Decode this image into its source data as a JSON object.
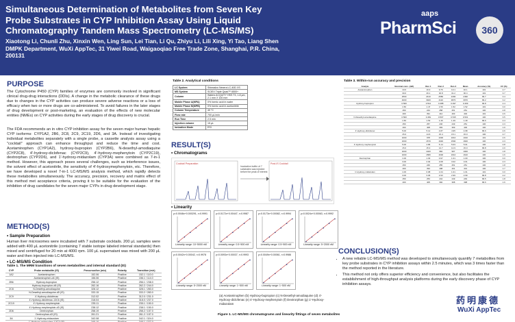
{
  "header": {
    "title": "Simultaneous Determination of Metabolites from Seven Key Probe Substrates in CYP Inhibition Assay Using Liquid Chromatography Tandem Mass Spectrometry (LC-MS/MS)",
    "authors": "Xiaotong Li, Chunli Zhu, Xinxin Wen, Ling Sun, Lei Tian, Li Qu, Zhiyu Li, Lili Xing, Yi Tao, Liang Shen",
    "affiliation": "DMPK Department, WuXi AppTec, 31 Yiwei Road, Waigaoqiao Free Trade Zone, Shanghai, P.R. China, 200131",
    "logo_small": "aaps",
    "logo_main": "PharmSci",
    "logo_number": "360"
  },
  "purpose": {
    "heading": "PURPOSE",
    "p1": "The Cytochrome P450 (CYP) families of enzymes are commonly involved in significant clinical drug-drug interactions (DDIs). A change in the metabolic clearance of these drugs due to changes in the CYP activities can produce severe adverse reactions or a loss of efficacy when two or more drugs are co-administered. To avoid failures in the later stages of drug development or post-marketing, an evaluation of the effects of new molecular entities (NMEs) on CYP activities during the early stages of drug discovery is crucial.",
    "p2": "The FDA recommends an in vitro CYP inhibition assay for the seven major human hepatic CYP isoforms: CYP1A2, 2B6, 2C8, 2C9, 2C19, 2D6, and 3A. Instead of investigating individual metabolites separately with a single probe, a cassette analysis assay using a \"cocktail\" approach can enhance throughput and reduce the time and cost. Acetaminophen (CYP1A2), hydroxy-bupropion (CYP2B6), N-desethyl-amodiaquine (CYP2C8), 4'-hydroxy-diclofenac (CYP2C9), 4'-hydroxy-mephenytoin (CYP2C19), dextrorphan (CYP2D6), and 1'-hydroxy-midazolam (CYP3A) were combined as 7-in-1 method. However, this approach poses several challenges, such as interference issues, the solvent effect of acetonitrile, the sensitivity of 4'-hydroxymephenytoin, etc. Therefore, we have developed a novel 7-in-1 LC-MS/MS analysis method, which rapidly detects these metabolites simultaneously. The accuracy, precision, recovery and matrix effect of this method met acceptance criteria, proving it to be suitable for the evaluation of the inhibition of drug candidates for the seven major CYPs in drug development stage."
  },
  "methods": {
    "heading": "METHOD(S)",
    "sample_prep_title": "• Sample Preparation",
    "sample_prep_text": "Human liver microsomes were incubated with 7 substrate cocktails. 200 μL samples were added with 400 μL acetonitrile (containing 7 stable isotope labeled internal standards) then mixed and centrifuged for 20 min at 4000 rpm. 100 μL supernatant was mixed with 200 μL water and then injected into LC-MS/MS.",
    "lcms_title": "• LC-MS/MS Condition",
    "table1_title": "Table 1.  The MRM transitions of seven metabolites and internal standard (IS)",
    "table1_headers": [
      "CYP",
      "Probe metabolite (IS)",
      "Precursor/Ion (m/z)",
      "Polarity",
      "Transition (m/z)"
    ],
    "table1_rows": [
      [
        "1A2",
        "Acetaminophen",
        "152.06",
        "Positive",
        "152.1 / 110.0"
      ],
      [
        "",
        "Acetaminophen-d4 (IS)",
        "156.06",
        "Positive",
        "156.1 / 114.0"
      ],
      [
        "2B6",
        "Hydroxy-bupropion",
        "256.12",
        "Positive",
        "256.1 / 238.0"
      ],
      [
        "",
        "Hydroxy-bupropion-d6 (IS)",
        "262.16",
        "Positive",
        "262.2 / 244.0"
      ],
      [
        "2C8",
        "N-Desethyl-amodiaquine",
        "328.12",
        "Positive",
        "328.1 / 283.0"
      ],
      [
        "",
        "N-Desethyl-amodiaquine-d5 (IS)",
        "333.15",
        "Positive",
        "333.2 / 283.0"
      ],
      [
        "2C9",
        "4'-Hydroxy-diclofenac",
        "312.02",
        "Positive",
        "312.0 / 231.0"
      ],
      [
        "",
        "4'-Hydroxy-diclofenac-13C6 (IS)",
        "318.04",
        "Positive",
        "318.0 / 237.0"
      ],
      [
        "2C19",
        "4'-Hydroxy-mephenytoin",
        "235.11",
        "Positive",
        "235.1 / 150.0"
      ],
      [
        "",
        "4'-Hydroxy-mephenytoin-d3 (IS)",
        "238.12",
        "Positive",
        "238.1 / 150.0"
      ],
      [
        "2D6",
        "Dextrorphan",
        "258.19",
        "Positive",
        "258.2 / 157.0"
      ],
      [
        "",
        "Dextrorphan-d3 (IS)",
        "261.21",
        "Positive",
        "261.2 / 157.0"
      ],
      [
        "3A",
        "1'-Hydroxy-midazolam",
        "342.08",
        "Positive",
        "342.1 / 324.0"
      ],
      [
        "",
        "1'-Hydroxy-midazolam-13C3 (IS)",
        "345.10",
        "Positive",
        "345.1 / 327.0"
      ]
    ]
  },
  "table2": {
    "title": "Table 2.  Analytical conditions",
    "rows": [
      [
        "LC System",
        "Shimadzu Nexera LC-40D XS"
      ],
      [
        "MS System",
        "SCIEX Triple Quad™ 6500+"
      ],
      [
        "Column",
        "Waters ACQUITY HSS T3, 1.8 μm, 2.1 mm X 100 mm"
      ],
      [
        "Mobile Phase A(MPA)",
        "0% formic acid in water"
      ],
      [
        "Mobile Phase B(MPB)",
        "0% formic acid in acetonitrile"
      ],
      [
        "Column Temperature",
        "40 °C"
      ],
      [
        "Flow rate",
        "700 μL/min"
      ],
      [
        "Run Time",
        "2.5 min"
      ],
      [
        "Injection volume",
        "15 μL"
      ],
      [
        "Ionization Mode",
        "ESI"
      ]
    ]
  },
  "results": {
    "heading": "RESULT(S)",
    "chromatograms_title": "• Chromatograms",
    "chrom_left_title": "Cocktail Preparation",
    "chrom_right_title": "Post-IS Cocktail",
    "chrom_note": "Incubation buffer of 7 substrates was injected before the peak of interest",
    "linearity_title": "• Linearity",
    "linearity_panels": [
      {
        "eq": "y=0.0046x+0.000291, r=0.9991",
        "range": "Linearity range: 10~5000 nM"
      },
      {
        "eq": "y=0.0172x+0.00447, r=0.9987",
        "range": "Linearity range: 0.5~500 nM"
      },
      {
        "eq": "y=0.0173x+0.00082, r=0.9994",
        "range": "Linearity range: 0.5~500 nM"
      },
      {
        "eq": "y=0.0024x+0.00063, r=0.9992",
        "range": "Linearity range: 5~2000 nM"
      },
      {
        "eq": "y=0.0042x+0.00042, r=0.9978",
        "range": "Linearity range: 5~2000 nM"
      },
      {
        "eq": "y=0.0093x+0.00037, r=0.9993",
        "range": "Linearity range: 1~500 nM"
      },
      {
        "eq": "y=0.0049x+0.00061, r=0.9986",
        "range": "Linearity range: 1~500 nM"
      }
    ],
    "legend": "(a) Acetaminophen   (b) Hydroxy-bupropion   (c) N-Desethyl-amodiaquine   (d) 4'-Hydroxy-diclofenac   (e) 4'-Hydroxy-mephenytoin   (f) Dextrorphan   (g) 1'-Hydroxy-midazolam",
    "figure_caption": "Figure 1.  LC-MS/MS chromatograms and linearity fittings of seven metabolites"
  },
  "table3": {
    "title": "Table 3.  Within-run accuracy and precision",
    "headers": [
      "Analyte",
      "Nominal conc. (nM)",
      "Run 1",
      "Run 2",
      "Run 3",
      "Mean",
      "Accuracy (%)",
      "CV (%)"
    ],
    "rows": [
      [
        "Acetaminophen",
        "10.0",
        "10.3",
        "9.76",
        "10.1",
        "10.1",
        "101",
        "2.7"
      ],
      [
        "",
        "30.0",
        "29.1",
        "30.8",
        "31.2",
        "30.4",
        "101",
        "3.7"
      ],
      [
        "",
        "2500",
        "2410",
        "2580",
        "2490",
        "2490",
        "99.7",
        "3.4"
      ],
      [
        "",
        "4000",
        "3920",
        "4110",
        "3870",
        "3970",
        "99.2",
        "3.2"
      ],
      [
        "Hydroxy-bupropion",
        "0.500",
        "0.512",
        "0.488",
        "0.497",
        "0.499",
        "99.8",
        "2.4"
      ],
      [
        "",
        "1.50",
        "1.47",
        "1.56",
        "1.52",
        "1.52",
        "101",
        "3.0"
      ],
      [
        "",
        "250",
        "244",
        "258",
        "251",
        "251",
        "100",
        "2.8"
      ],
      [
        "",
        "400",
        "391",
        "412",
        "403",
        "402",
        "101",
        "2.6"
      ],
      [
        "N-Desethyl-amodiaquine",
        "0.500",
        "0.481",
        "0.507",
        "0.515",
        "0.501",
        "100",
        "3.5"
      ],
      [
        "",
        "1.50",
        "1.53",
        "1.46",
        "1.49",
        "1.49",
        "99.6",
        "2.4"
      ],
      [
        "",
        "250",
        "257",
        "246",
        "249",
        "251",
        "100",
        "2.3"
      ],
      [
        "",
        "400",
        "408",
        "393",
        "399",
        "400",
        "100",
        "1.9"
      ],
      [
        "4'-Hydroxy-diclofenac",
        "5.00",
        "5.12",
        "4.87",
        "4.95",
        "4.98",
        "99.6",
        "2.6"
      ],
      [
        "",
        "15.0",
        "14.6",
        "15.4",
        "15.1",
        "15.0",
        "100",
        "2.7"
      ],
      [
        "",
        "1000",
        "978",
        "1030",
        "1010",
        "1010",
        "101",
        "2.6"
      ],
      [
        "",
        "1600",
        "1570",
        "1640",
        "1590",
        "1600",
        "100",
        "2.3"
      ],
      [
        "4'-Hydroxy-mephenytoin",
        "5.00",
        "4.86",
        "5.14",
        "5.03",
        "5.01",
        "100",
        "2.8"
      ],
      [
        "",
        "15.0",
        "15.3",
        "14.7",
        "14.9",
        "15.0",
        "99.8",
        "2.0"
      ],
      [
        "",
        "1000",
        "1020",
        "984",
        "997",
        "1000",
        "100",
        "1.8"
      ],
      [
        "",
        "1600",
        "1580",
        "1630",
        "1610",
        "1610",
        "100",
        "1.6"
      ],
      [
        "Dextrorphan",
        "1.00",
        "1.03",
        "0.97",
        "1.01",
        "1.00",
        "100",
        "3.0"
      ],
      [
        "",
        "3.00",
        "2.94",
        "3.08",
        "3.02",
        "3.01",
        "100",
        "2.3"
      ],
      [
        "",
        "250",
        "246",
        "255",
        "251",
        "251",
        "100",
        "1.8"
      ],
      [
        "",
        "400",
        "394",
        "408",
        "401",
        "401",
        "100",
        "1.7"
      ],
      [
        "1'-Hydroxy-midazolam",
        "1.00",
        "0.98",
        "1.04",
        "1.01",
        "1.01",
        "101",
        "3.0"
      ],
      [
        "",
        "3.00",
        "3.06",
        "2.93",
        "2.99",
        "2.99",
        "99.8",
        "2.2"
      ],
      [
        "",
        "250",
        "253",
        "244",
        "249",
        "249",
        "99.5",
        "1.8"
      ],
      [
        "",
        "400",
        "405",
        "392",
        "398",
        "398",
        "99.6",
        "1.6"
      ]
    ]
  },
  "conclusion": {
    "heading": "CONCLUSION(S)",
    "bullets": [
      "A new reliable LC-MS/MS method was developed to simultaneously quantify 7 metabolites from key probe substrates in CYP inhibition assays within 2.5 minutes, which was 3 times faster than the method reported in the literature.",
      "This method not only offers superior efficiency and convenience, but also facilitates the establishment of high-throughput analysis platforms during the early discovery phase of CYP inhibition assays."
    ]
  },
  "footer_logo": {
    "cn": "药明康德",
    "en": "WuXi AppTec"
  },
  "colors": {
    "header_bg": "#2a3c86",
    "heading": "#2a3c86",
    "chrom_trace": "#2a3c86",
    "fit_line": "#c23b3b"
  }
}
